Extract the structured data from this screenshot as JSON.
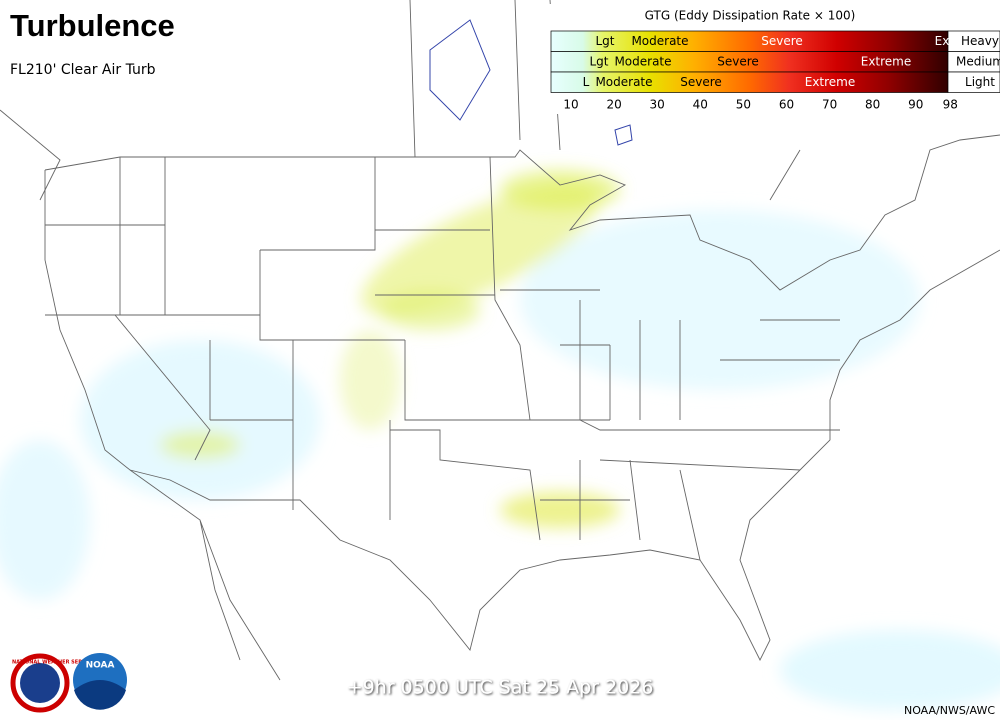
{
  "header": {
    "title": "Turbulence",
    "subtitle": "FL210' Clear Air Turb"
  },
  "legend": {
    "title": "GTG (Eddy Dissipation Rate × 100)",
    "rows": [
      {
        "name": "Heavy",
        "labels": [
          "Lgt",
          "Moderate",
          "Severe",
          "Ex"
        ]
      },
      {
        "name": "Medium",
        "labels": [
          "Lgt",
          "Moderate",
          "Severe",
          "Extreme"
        ]
      },
      {
        "name": "Light",
        "labels": [
          "L",
          "Moderate",
          "Severe",
          "Extreme"
        ]
      }
    ],
    "ticks": [
      10,
      20,
      30,
      40,
      50,
      60,
      70,
      80,
      90,
      98
    ]
  },
  "footer": {
    "valid_time": "+9hr 0500 UTC Sat 25 Apr 2026",
    "credit": "NOAA/NWS/AWC"
  },
  "logos": {
    "nws": "NATIONAL WEATHER SERVICE",
    "noaa": "NOAA"
  }
}
